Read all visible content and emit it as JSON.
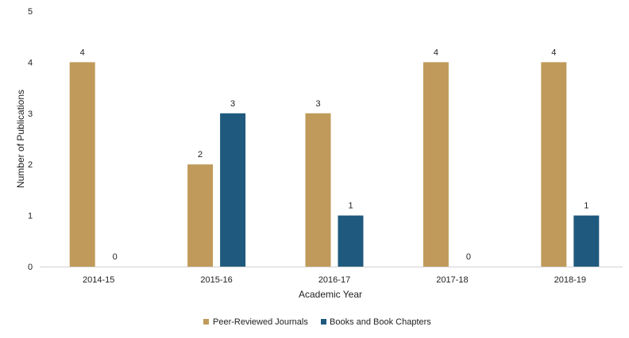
{
  "chart_data": {
    "type": "bar",
    "categories": [
      "2014-15",
      "2015-16",
      "2016-17",
      "2017-18",
      "2018-19"
    ],
    "series": [
      {
        "name": "Peer-Reviewed Journals",
        "values": [
          4,
          2,
          3,
          4,
          4
        ],
        "color": "#C09A5A"
      },
      {
        "name": "Books and Book Chapters",
        "values": [
          0,
          3,
          1,
          0,
          1
        ],
        "color": "#1F5A7E"
      }
    ],
    "xlabel": "Academic Year",
    "ylabel": "Number of Publications",
    "ylim": [
      0,
      5
    ],
    "yticks": [
      0,
      1,
      2,
      3,
      4,
      5
    ],
    "grid": false,
    "legend": "bottom",
    "data_labels": true
  }
}
